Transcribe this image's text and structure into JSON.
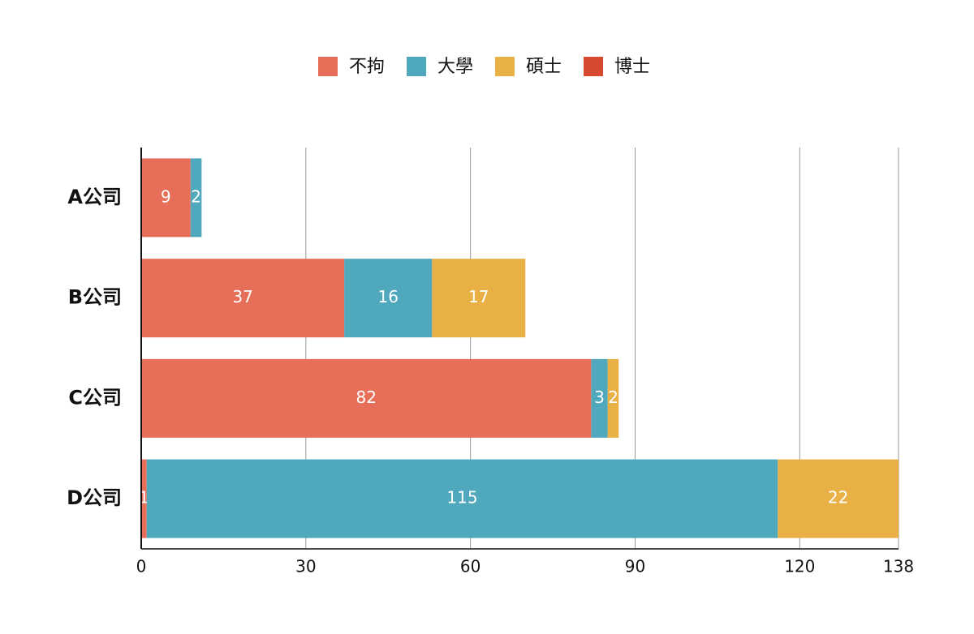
{
  "chart_data": {
    "type": "bar",
    "orientation": "horizontal",
    "stacked": true,
    "categories": [
      "A公司",
      "B公司",
      "C公司",
      "D公司"
    ],
    "series": [
      {
        "name": "不拘",
        "color": "#e76f5a",
        "values": [
          9,
          37,
          82,
          1
        ]
      },
      {
        "name": "大學",
        "color": "#4fa8bc",
        "values": [
          2,
          16,
          3,
          115
        ]
      },
      {
        "name": "碩士",
        "color": "#e8b045",
        "values": [
          0,
          17,
          2,
          22
        ]
      },
      {
        "name": "博士",
        "color": "#d84a30",
        "values": [
          0,
          0,
          0,
          0
        ]
      }
    ],
    "xlim": [
      0,
      138
    ],
    "xticks": [
      0,
      30,
      60,
      90,
      120,
      138
    ],
    "grid": true,
    "legend": "top"
  }
}
